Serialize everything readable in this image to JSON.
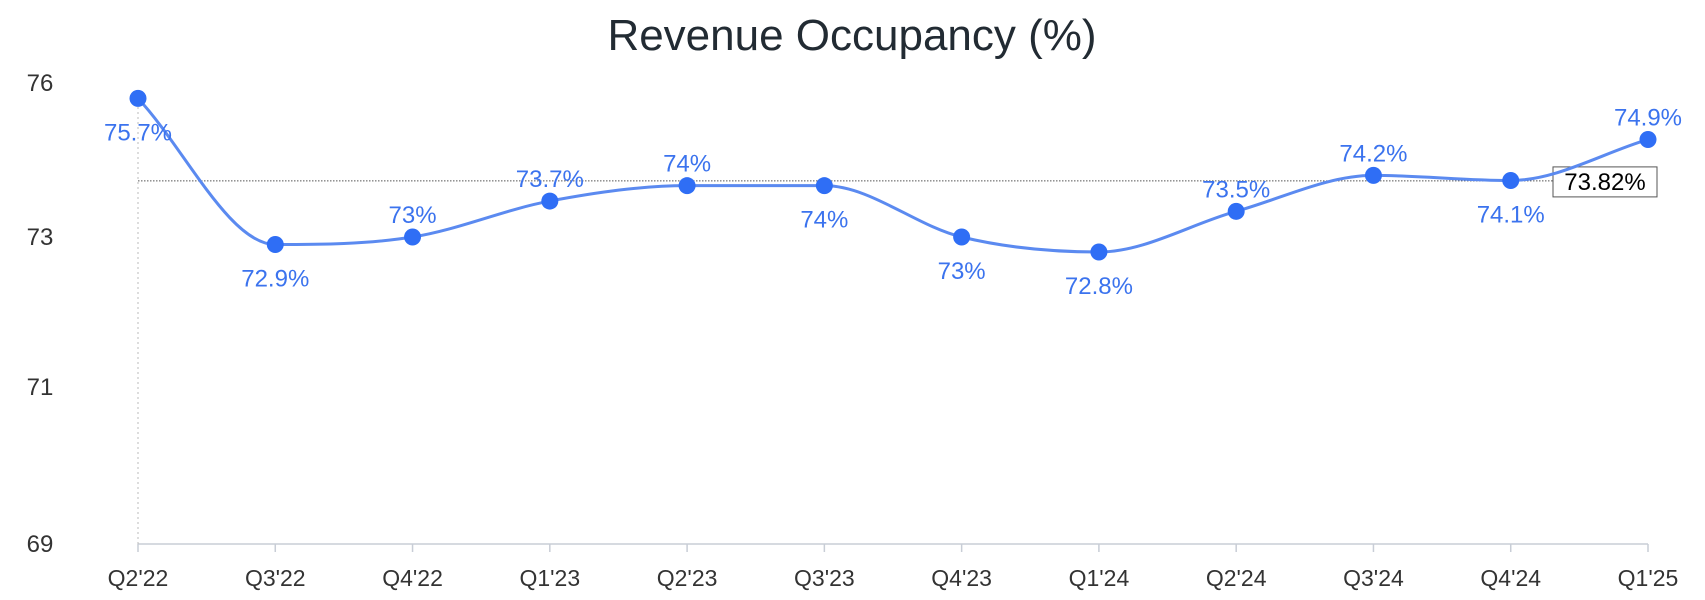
{
  "chart_data": {
    "type": "line",
    "title": "Revenue Occupancy (%)",
    "xlabel": "",
    "ylabel": "",
    "categories": [
      "Q2'22",
      "Q3'22",
      "Q4'22",
      "Q1'23",
      "Q2'23",
      "Q3'23",
      "Q4'23",
      "Q1'24",
      "Q2'24",
      "Q3'24",
      "Q4'24",
      "Q1'25"
    ],
    "series": [
      {
        "values": [
          75.7,
          72.9,
          73,
          73.7,
          74,
          74,
          73,
          72.8,
          73.5,
          74.2,
          74.1,
          74.9
        ],
        "labels": [
          "75.7%",
          "72.9%",
          "73%",
          "73.7%",
          "74%",
          "74%",
          "73%",
          "72.8%",
          "73.5%",
          "74.2%",
          "74.1%",
          "74.9%"
        ],
        "label_position": [
          "below",
          "below",
          "above",
          "above",
          "above",
          "below",
          "below",
          "below",
          "above",
          "above",
          "below",
          "above"
        ]
      }
    ],
    "reference_line": {
      "value": 73.82,
      "label": "73.82%"
    },
    "yticks": [
      69,
      71,
      73,
      76
    ],
    "ylim": [
      69,
      76
    ],
    "grid": false,
    "colors": {
      "line": "#5b8af0",
      "marker": "#2f6ef5",
      "label": "#3b73ee",
      "reference": "#555555",
      "axis": "#c8cdd6"
    }
  }
}
